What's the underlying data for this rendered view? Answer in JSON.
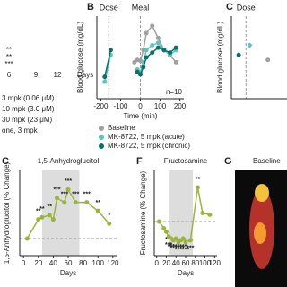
{
  "panel_a": {
    "xticks": [
      "6",
      "9",
      "12"
    ],
    "xlabel": "Days",
    "legend": [
      "3 mpk (0.06 μM)",
      "10 mpk (3.0 μM)",
      "30 mpk (23 μM)",
      "one, 3 mpk"
    ],
    "stars": [
      "**",
      "**",
      "***"
    ]
  },
  "chart_data": [
    {
      "type": "line",
      "letter": "B",
      "ylabel": "Blood glucose (mg/dL)",
      "xlabel": "Time (min)",
      "note": "n=10",
      "events": [
        {
          "x": -160,
          "label": "Dose"
        },
        {
          "x": 0,
          "label": "Meal"
        }
      ],
      "x": [
        -180,
        -150,
        -30,
        -15,
        0,
        15,
        30,
        60,
        90,
        120,
        150,
        180
      ],
      "xlim": [
        -220,
        220
      ],
      "xticks": [
        -200,
        -100,
        0,
        100,
        200
      ],
      "ylim": [
        50,
        220
      ],
      "yticks": [],
      "series": [
        {
          "name": "Baseline",
          "color": "#a0a0a0",
          "values": [
            null,
            null,
            125,
            130,
            128,
            150,
            185,
            200,
            175,
            150,
            140,
            125
          ]
        },
        {
          "name": "MK-8722, 5 mpk (acute)",
          "color": "#5cc5c0",
          "values": [
            85,
            140,
            null,
            110,
            105,
            125,
            150,
            160,
            165,
            150,
            140,
            150
          ]
        },
        {
          "name": "MK-8722, 5 mpk (chronic)",
          "color": "#0e6f6a",
          "values": [
            95,
            150,
            null,
            105,
            100,
            115,
            135,
            145,
            155,
            150,
            145,
            155
          ]
        }
      ]
    },
    {
      "type": "line",
      "letter": "C",
      "ylabel": "Blood glucose (mg/dL)",
      "events": [
        {
          "x": -160,
          "label": "Dose"
        }
      ],
      "x": [
        -180,
        -150,
        -100
      ],
      "xlim": [
        -200,
        100
      ],
      "xticks": [],
      "ylim": [
        50,
        220
      ],
      "yticks": [],
      "series": [
        {
          "color": "#0e6f6a",
          "values": [
            140,
            null,
            null
          ]
        },
        {
          "color": "#5cc5c0",
          "values": [
            null,
            160,
            null
          ]
        },
        {
          "color": "#a0a0a0",
          "values": [
            null,
            null,
            130
          ]
        }
      ]
    },
    {
      "type": "line",
      "letter": "C",
      "title": "1,5-Anhydroglucitol",
      "ylabel": "1,5-Anhydroglucitol (% Change)",
      "xlabel": "Days",
      "shade": [
        25,
        75
      ],
      "refline": 0,
      "x": [
        5,
        20,
        25,
        35,
        40,
        45,
        55,
        60,
        70,
        85,
        100,
        115
      ],
      "xlim": [
        -5,
        125
      ],
      "xticks": [
        0,
        20,
        40,
        60,
        80,
        100,
        120
      ],
      "ylim": [
        -40,
        160
      ],
      "yticks": [],
      "series": [
        {
          "color": "#9bb53a",
          "values": [
            0,
            45,
            50,
            55,
            45,
            95,
            85,
            115,
            85,
            85,
            65,
            35
          ],
          "sig": [
            null,
            "**",
            "**",
            "**",
            null,
            "***",
            "***",
            "***",
            "***",
            "***",
            "**",
            "*"
          ]
        }
      ]
    },
    {
      "type": "line",
      "letter": "F",
      "title": "Fructosamine",
      "ylabel": "Fructosamine (% Change)",
      "xlabel": "Days",
      "shade": [
        25,
        75
      ],
      "refline": 0,
      "x": [
        5,
        15,
        20,
        25,
        30,
        35,
        40,
        45,
        50,
        55,
        60,
        70,
        85,
        95,
        110
      ],
      "xlim": [
        -5,
        125
      ],
      "xticks": [
        0,
        20,
        40,
        60,
        80,
        100,
        120
      ],
      "ylim": [
        -40,
        60
      ],
      "yticks": [],
      "series": [
        {
          "color": "#9bb53a",
          "values": [
            0,
            -8,
            -12,
            -18,
            -20,
            -22,
            -20,
            -24,
            -22,
            -20,
            -24,
            -22,
            40,
            10,
            8
          ],
          "sig": [
            null,
            null,
            "*",
            "***",
            "***",
            "***",
            "***",
            "***",
            "***",
            "***",
            "***",
            "***",
            "**",
            null,
            null
          ]
        }
      ]
    }
  ],
  "panel_g": {
    "letter": "G",
    "title": "Baseline"
  }
}
